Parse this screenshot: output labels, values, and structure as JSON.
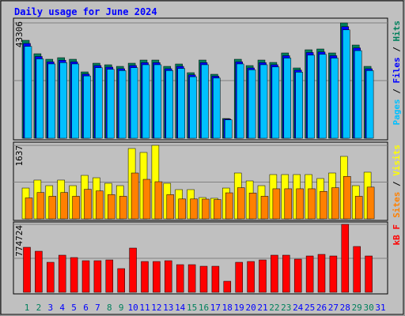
{
  "chart_data": {
    "type": "bar",
    "title": "Daily usage for June 2024",
    "categories": [
      "1",
      "2",
      "3",
      "4",
      "5",
      "6",
      "7",
      "8",
      "9",
      "10",
      "11",
      "12",
      "13",
      "14",
      "15",
      "16",
      "17",
      "18",
      "19",
      "20",
      "21",
      "22",
      "23",
      "24",
      "25",
      "26",
      "27",
      "28",
      "29",
      "30",
      "31"
    ],
    "category_colors": [
      "#00805c",
      "#00805c",
      "#0000ff",
      "#0000ff",
      "#0000ff",
      "#0000ff",
      "#0000ff",
      "#00805c",
      "#00805c",
      "#0000ff",
      "#0000ff",
      "#0000ff",
      "#0000ff",
      "#0000ff",
      "#00805c",
      "#00805c",
      "#0000ff",
      "#0000ff",
      "#0000ff",
      "#0000ff",
      "#0000ff",
      "#00805c",
      "#00805c",
      "#0000ff",
      "#0000ff",
      "#0000ff",
      "#0000ff",
      "#0000ff",
      "#00805c",
      "#00805c",
      "#0000ff"
    ],
    "legend_separator": " / ",
    "panels": [
      {
        "ylim": [
          0,
          43306
        ],
        "yticks": [
          43306
        ],
        "series": [
          {
            "name": "Hits",
            "color": "#00805c",
            "values": [
              36780,
              31738,
              29661,
              30255,
              29661,
              24916,
              28178,
              27585,
              26992,
              28178,
              29365,
              29365,
              26992,
              27882,
              24619,
              29365,
              24026,
              7415,
              29661,
              27289,
              29365,
              28475,
              32034,
              26399,
              33221,
              33518,
              32034,
              43306,
              35000,
              26992,
              null
            ]
          },
          {
            "name": "Files",
            "color": "#0000ff",
            "values": [
              35600,
              30700,
              28700,
              29300,
              28700,
              24100,
              27300,
              26700,
              26100,
              27300,
              28400,
              28400,
              26100,
              27000,
              23800,
              28400,
              23300,
              7200,
              28700,
              26400,
              28400,
              27600,
              31000,
              25600,
              32200,
              32400,
              31000,
              41900,
              33900,
              26100,
              null
            ]
          },
          {
            "name": "Pages",
            "color": "#00c0ff",
            "values": [
              34500,
              29800,
              27900,
              28400,
              27900,
              23400,
              26500,
              25900,
              25400,
              26500,
              27600,
              27600,
              25400,
              26200,
              23100,
              27600,
              22600,
              6900,
              27900,
              25700,
              27600,
              26800,
              30100,
              24800,
              31200,
              31500,
              30100,
              40700,
              32900,
              25400,
              null
            ]
          }
        ]
      },
      {
        "ylim": [
          0,
          1637
        ],
        "yticks": [
          1637
        ],
        "series": [
          {
            "name": "Visits",
            "color": "#ffff00",
            "values": [
              686,
              863,
              739,
              863,
              739,
              968,
              915,
              792,
              739,
              1567,
              1479,
              1637,
              792,
              651,
              651,
              475,
              458,
              686,
              1021,
              845,
              739,
              986,
              986,
              986,
              986,
              898,
              1021,
              1391,
              739,
              1039,
              null
            ]
          },
          {
            "name": "Sites",
            "color": "#ff8000",
            "values": [
              466,
              587,
              503,
              587,
              503,
              658,
              622,
              539,
              503,
              1021,
              880,
              827,
              539,
              443,
              443,
              440,
              430,
              580,
              694,
              575,
              503,
              670,
              670,
              670,
              670,
              611,
              694,
              946,
              503,
              707,
              null
            ]
          }
        ]
      },
      {
        "ylim": [
          0,
          774724
        ],
        "yticks": [
          774724
        ],
        "series": [
          {
            "name": "kB F",
            "color": "#ff0000",
            "values": [
              513480,
              468438,
              342320,
              423396,
              396370,
              360337,
              360337,
              369345,
              270252,
              504471,
              351328,
              351328,
              360337,
              315294,
              315294,
              297278,
              297278,
              126118,
              342320,
              351328,
              369345,
              423396,
              423396,
              378354,
              414387,
              432404,
              414387,
              774724,
              522488,
              414387,
              null
            ]
          }
        ]
      }
    ]
  }
}
